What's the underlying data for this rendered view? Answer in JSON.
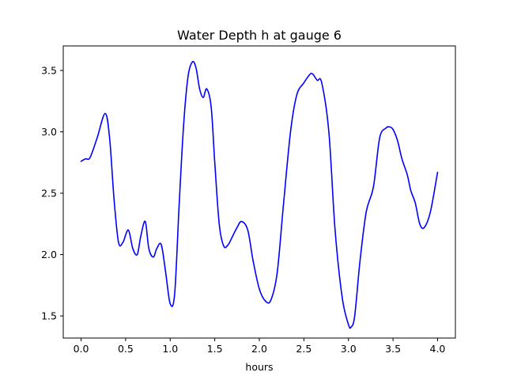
{
  "chart_data": {
    "type": "line",
    "title": "Water Depth h at gauge 6",
    "xlabel": "hours",
    "ylabel": "",
    "xlim": [
      -0.2,
      4.2
    ],
    "ylim": [
      1.32,
      3.7
    ],
    "xticks": [
      0.0,
      0.5,
      1.0,
      1.5,
      2.0,
      2.5,
      3.0,
      3.5,
      4.0
    ],
    "xtick_labels": [
      "0.0",
      "0.5",
      "1.0",
      "1.5",
      "2.0",
      "2.5",
      "3.0",
      "3.5",
      "4.0"
    ],
    "yticks": [
      1.5,
      2.0,
      2.5,
      3.0,
      3.5
    ],
    "ytick_labels": [
      "1.5",
      "2.0",
      "2.5",
      "3.0",
      "3.5"
    ],
    "grid": false,
    "series": [
      {
        "color": "#0000ff",
        "x": [
          0.0,
          0.05,
          0.1,
          0.18,
          0.27,
          0.32,
          0.37,
          0.42,
          0.47,
          0.53,
          0.58,
          0.63,
          0.67,
          0.72,
          0.76,
          0.81,
          0.85,
          0.9,
          0.95,
          1.0,
          1.05,
          1.1,
          1.15,
          1.2,
          1.25,
          1.29,
          1.33,
          1.37,
          1.41,
          1.46,
          1.5,
          1.55,
          1.6,
          1.65,
          1.7,
          1.75,
          1.8,
          1.87,
          1.93,
          2.0,
          2.07,
          2.13,
          2.2,
          2.27,
          2.35,
          2.42,
          2.5,
          2.57,
          2.6,
          2.65,
          2.7,
          2.78,
          2.85,
          2.93,
          3.0,
          3.03,
          3.07,
          3.13,
          3.2,
          3.28,
          3.35,
          3.42,
          3.46,
          3.5,
          3.55,
          3.6,
          3.66,
          3.7,
          3.75,
          3.8,
          3.85,
          3.92,
          4.0
        ],
        "values": [
          2.76,
          2.78,
          2.79,
          2.95,
          3.15,
          2.95,
          2.45,
          2.1,
          2.1,
          2.2,
          2.05,
          2.0,
          2.15,
          2.27,
          2.05,
          1.98,
          2.05,
          2.08,
          1.85,
          1.6,
          1.68,
          2.4,
          3.05,
          3.45,
          3.57,
          3.52,
          3.35,
          3.28,
          3.35,
          3.2,
          2.75,
          2.25,
          2.07,
          2.08,
          2.15,
          2.22,
          2.27,
          2.2,
          1.95,
          1.72,
          1.62,
          1.63,
          1.85,
          2.4,
          3.0,
          3.3,
          3.4,
          3.47,
          3.47,
          3.42,
          3.4,
          3.0,
          2.2,
          1.65,
          1.43,
          1.41,
          1.5,
          1.95,
          2.35,
          2.55,
          2.95,
          3.03,
          3.04,
          3.02,
          2.93,
          2.78,
          2.65,
          2.52,
          2.42,
          2.25,
          2.22,
          2.35,
          2.67
        ]
      }
    ]
  }
}
